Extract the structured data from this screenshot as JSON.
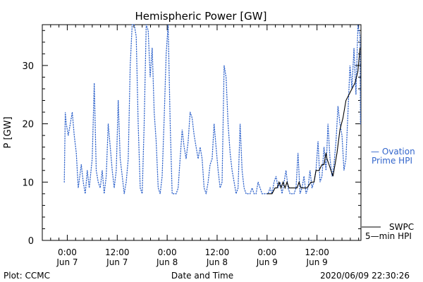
{
  "chart_data": {
    "type": "line",
    "title": "Hemispheric Power [GW]",
    "ylabel": "P [GW]",
    "xlabel": "Date and Time",
    "ylim": [
      0,
      37
    ],
    "yticks": [
      0,
      10,
      20,
      30
    ],
    "xlim": [
      -0.25,
      2.94
    ],
    "x_units": "days since Jun 7 0:00",
    "xticks": [
      {
        "x": 0.0,
        "time": "0:00",
        "date": "Jun 7"
      },
      {
        "x": 0.5,
        "time": "12:00",
        "date": "Jun 7"
      },
      {
        "x": 1.0,
        "time": "0:00",
        "date": "Jun 8"
      },
      {
        "x": 1.5,
        "time": "12:00",
        "date": "Jun 8"
      },
      {
        "x": 2.0,
        "time": "0:00",
        "date": "Jun 9"
      },
      {
        "x": 2.5,
        "time": "12:00",
        "date": "Jun 9"
      }
    ],
    "series": [
      {
        "name": "Ovation Prime HPI",
        "style": "dotted",
        "color": "#3366cc",
        "points": [
          [
            -0.03,
            10
          ],
          [
            -0.02,
            22
          ],
          [
            -0.01,
            20
          ],
          [
            0.01,
            18
          ],
          [
            0.03,
            20
          ],
          [
            0.05,
            22
          ],
          [
            0.07,
            18
          ],
          [
            0.09,
            15
          ],
          [
            0.11,
            9
          ],
          [
            0.14,
            13
          ],
          [
            0.16,
            10
          ],
          [
            0.18,
            8
          ],
          [
            0.2,
            12
          ],
          [
            0.22,
            9
          ],
          [
            0.25,
            14
          ],
          [
            0.27,
            27
          ],
          [
            0.29,
            12
          ],
          [
            0.31,
            10
          ],
          [
            0.33,
            9
          ],
          [
            0.35,
            12
          ],
          [
            0.37,
            8
          ],
          [
            0.39,
            11
          ],
          [
            0.41,
            20
          ],
          [
            0.43,
            16
          ],
          [
            0.45,
            12
          ],
          [
            0.47,
            9
          ],
          [
            0.49,
            12
          ],
          [
            0.51,
            24
          ],
          [
            0.53,
            14
          ],
          [
            0.55,
            11
          ],
          [
            0.57,
            8
          ],
          [
            0.59,
            10
          ],
          [
            0.61,
            14
          ],
          [
            0.63,
            30
          ],
          [
            0.65,
            37
          ],
          [
            0.67,
            37
          ],
          [
            0.69,
            35
          ],
          [
            0.71,
            20
          ],
          [
            0.73,
            9
          ],
          [
            0.75,
            8
          ],
          [
            0.77,
            20
          ],
          [
            0.79,
            37
          ],
          [
            0.81,
            36
          ],
          [
            0.83,
            28
          ],
          [
            0.85,
            33
          ],
          [
            0.87,
            22
          ],
          [
            0.89,
            17
          ],
          [
            0.91,
            9
          ],
          [
            0.93,
            8
          ],
          [
            0.95,
            11
          ],
          [
            0.97,
            21
          ],
          [
            0.99,
            32
          ],
          [
            1.01,
            37
          ],
          [
            1.03,
            20
          ],
          [
            1.05,
            8
          ],
          [
            1.07,
            8
          ],
          [
            1.09,
            8
          ],
          [
            1.11,
            9
          ],
          [
            1.13,
            14
          ],
          [
            1.15,
            19
          ],
          [
            1.17,
            16
          ],
          [
            1.19,
            14
          ],
          [
            1.21,
            17
          ],
          [
            1.23,
            22
          ],
          [
            1.25,
            21
          ],
          [
            1.27,
            18
          ],
          [
            1.29,
            16
          ],
          [
            1.31,
            14
          ],
          [
            1.33,
            16
          ],
          [
            1.35,
            14
          ],
          [
            1.37,
            9
          ],
          [
            1.39,
            8
          ],
          [
            1.41,
            10
          ],
          [
            1.43,
            13
          ],
          [
            1.45,
            14
          ],
          [
            1.47,
            20
          ],
          [
            1.49,
            16
          ],
          [
            1.51,
            12
          ],
          [
            1.53,
            9
          ],
          [
            1.55,
            10
          ],
          [
            1.57,
            30
          ],
          [
            1.59,
            28
          ],
          [
            1.61,
            20
          ],
          [
            1.63,
            15
          ],
          [
            1.65,
            12
          ],
          [
            1.67,
            10
          ],
          [
            1.69,
            8
          ],
          [
            1.71,
            9
          ],
          [
            1.73,
            20
          ],
          [
            1.75,
            12
          ],
          [
            1.77,
            9
          ],
          [
            1.79,
            8
          ],
          [
            1.81,
            8
          ],
          [
            1.83,
            8
          ],
          [
            1.85,
            9
          ],
          [
            1.87,
            8
          ],
          [
            1.89,
            8
          ],
          [
            1.91,
            10
          ],
          [
            1.93,
            9
          ],
          [
            1.95,
            8
          ],
          [
            1.97,
            8
          ],
          [
            1.99,
            8
          ],
          [
            2.01,
            8
          ],
          [
            2.03,
            9
          ],
          [
            2.05,
            8
          ],
          [
            2.07,
            10
          ],
          [
            2.09,
            11
          ],
          [
            2.11,
            9
          ],
          [
            2.13,
            10
          ],
          [
            2.15,
            8
          ],
          [
            2.17,
            10
          ],
          [
            2.19,
            12
          ],
          [
            2.21,
            9
          ],
          [
            2.23,
            8
          ],
          [
            2.25,
            8
          ],
          [
            2.27,
            8
          ],
          [
            2.29,
            9
          ],
          [
            2.31,
            15
          ],
          [
            2.33,
            8
          ],
          [
            2.35,
            9
          ],
          [
            2.37,
            11
          ],
          [
            2.39,
            8
          ],
          [
            2.41,
            9
          ],
          [
            2.43,
            12
          ],
          [
            2.45,
            9
          ],
          [
            2.47,
            10
          ],
          [
            2.49,
            12
          ],
          [
            2.51,
            17
          ],
          [
            2.53,
            10
          ],
          [
            2.55,
            11
          ],
          [
            2.57,
            16
          ],
          [
            2.59,
            12
          ],
          [
            2.61,
            20
          ],
          [
            2.63,
            14
          ],
          [
            2.65,
            11
          ],
          [
            2.67,
            13
          ],
          [
            2.69,
            17
          ],
          [
            2.71,
            23
          ],
          [
            2.73,
            20
          ],
          [
            2.75,
            18
          ],
          [
            2.77,
            12
          ],
          [
            2.79,
            14
          ],
          [
            2.81,
            22
          ],
          [
            2.83,
            30
          ],
          [
            2.85,
            26
          ],
          [
            2.87,
            33
          ],
          [
            2.89,
            25
          ],
          [
            2.91,
            37
          ],
          [
            2.93,
            35
          ],
          [
            2.935,
            20
          ]
        ]
      },
      {
        "name": "SWPC 5-min HPI",
        "style": "solid",
        "color": "#000000",
        "points": [
          [
            2.0,
            8
          ],
          [
            2.05,
            8
          ],
          [
            2.08,
            9
          ],
          [
            2.1,
            9
          ],
          [
            2.12,
            10
          ],
          [
            2.14,
            9
          ],
          [
            2.16,
            10
          ],
          [
            2.18,
            9
          ],
          [
            2.2,
            10
          ],
          [
            2.22,
            9
          ],
          [
            2.3,
            9
          ],
          [
            2.32,
            10
          ],
          [
            2.34,
            9
          ],
          [
            2.4,
            9
          ],
          [
            2.44,
            10
          ],
          [
            2.47,
            10
          ],
          [
            2.49,
            12
          ],
          [
            2.52,
            12
          ],
          [
            2.55,
            13
          ],
          [
            2.57,
            13
          ],
          [
            2.59,
            15
          ],
          [
            2.6,
            14
          ],
          [
            2.62,
            13
          ],
          [
            2.64,
            12
          ],
          [
            2.66,
            11
          ],
          [
            2.68,
            13
          ],
          [
            2.7,
            15
          ],
          [
            2.73,
            19
          ],
          [
            2.76,
            21
          ],
          [
            2.79,
            24
          ],
          [
            2.82,
            25
          ],
          [
            2.85,
            26
          ],
          [
            2.88,
            27
          ],
          [
            2.91,
            29
          ],
          [
            2.93,
            33
          ]
        ]
      }
    ]
  },
  "legend": {
    "ovation_line1": "— Ovation",
    "ovation_line2": "Prime HPI",
    "swpc_line1": "SWPC",
    "swpc_line2": "5—min HPI"
  },
  "footer": {
    "left": "Plot: CCMC",
    "right": "2020/06/09 22:30:26"
  }
}
